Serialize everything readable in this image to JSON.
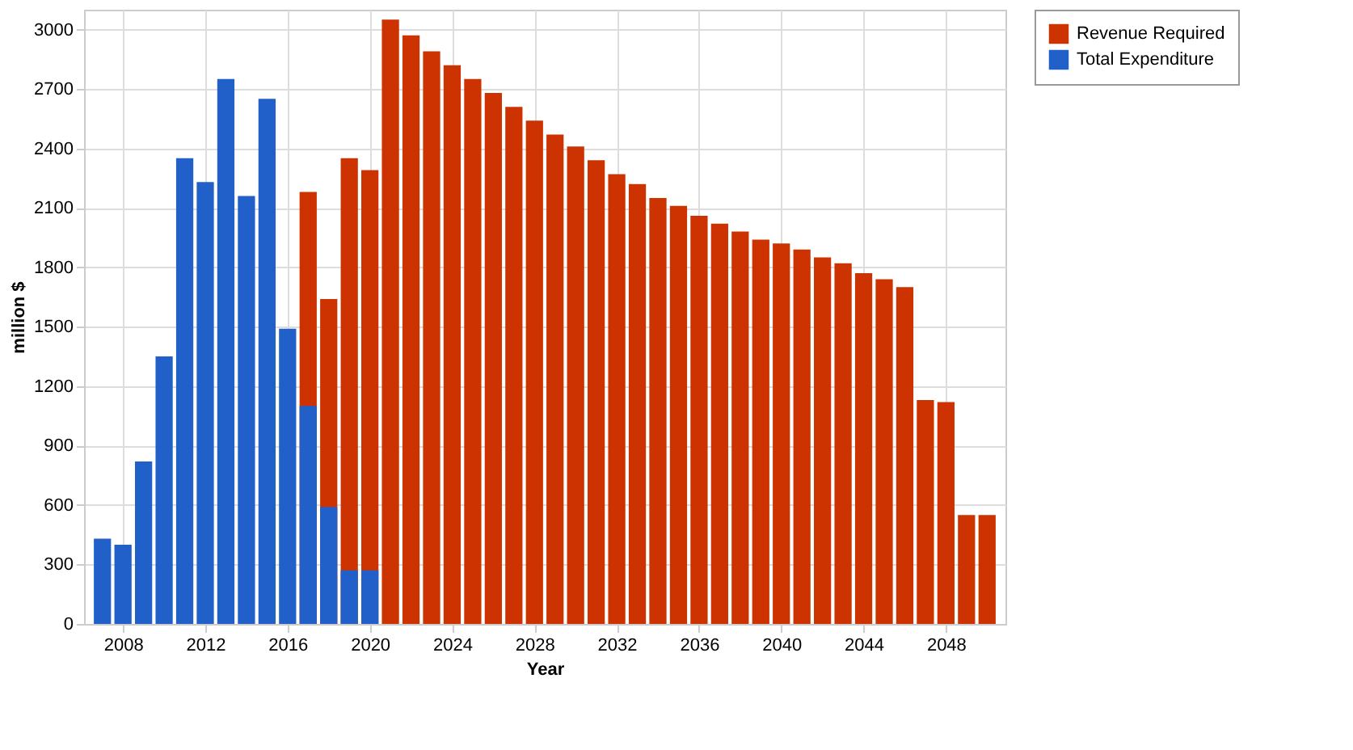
{
  "chart_data": {
    "type": "bar",
    "xlabel": "Year",
    "ylabel": "million $",
    "series": [
      {
        "name": "Revenue Required",
        "color": "#cc3300",
        "x": [
          2017,
          2018,
          2019,
          2020,
          2021,
          2022,
          2023,
          2024,
          2025,
          2026,
          2027,
          2028,
          2029,
          2030,
          2031,
          2032,
          2033,
          2034,
          2035,
          2036,
          2037,
          2038,
          2039,
          2040,
          2041,
          2042,
          2043,
          2044,
          2045,
          2046,
          2047,
          2048,
          2049,
          2050
        ],
        "values": [
          2180,
          1640,
          2350,
          2290,
          3050,
          2970,
          2890,
          2820,
          2750,
          2680,
          2610,
          2540,
          2470,
          2410,
          2340,
          2270,
          2220,
          2150,
          2110,
          2060,
          2020,
          1980,
          1940,
          1920,
          1890,
          1850,
          1820,
          1770,
          1740,
          1700,
          1130,
          1120,
          550,
          550
        ]
      },
      {
        "name": "Total Expenditure",
        "color": "#2060c8",
        "x": [
          2007,
          2008,
          2009,
          2010,
          2011,
          2012,
          2013,
          2014,
          2015,
          2016,
          2017,
          2018,
          2019,
          2020
        ],
        "values": [
          430,
          400,
          820,
          1350,
          2350,
          2230,
          2750,
          2160,
          2650,
          1490,
          1100,
          590,
          270,
          270
        ]
      }
    ],
    "xlim": [
      2006.5,
      2050.5
    ],
    "xticks": [
      2008,
      2012,
      2016,
      2020,
      2024,
      2028,
      2032,
      2036,
      2040,
      2044,
      2048
    ],
    "ylim": [
      0,
      3100
    ],
    "yticks": [
      0,
      300,
      600,
      900,
      1200,
      1500,
      1800,
      2100,
      2400,
      2700,
      3000
    ],
    "grid": true,
    "legend": "right"
  }
}
